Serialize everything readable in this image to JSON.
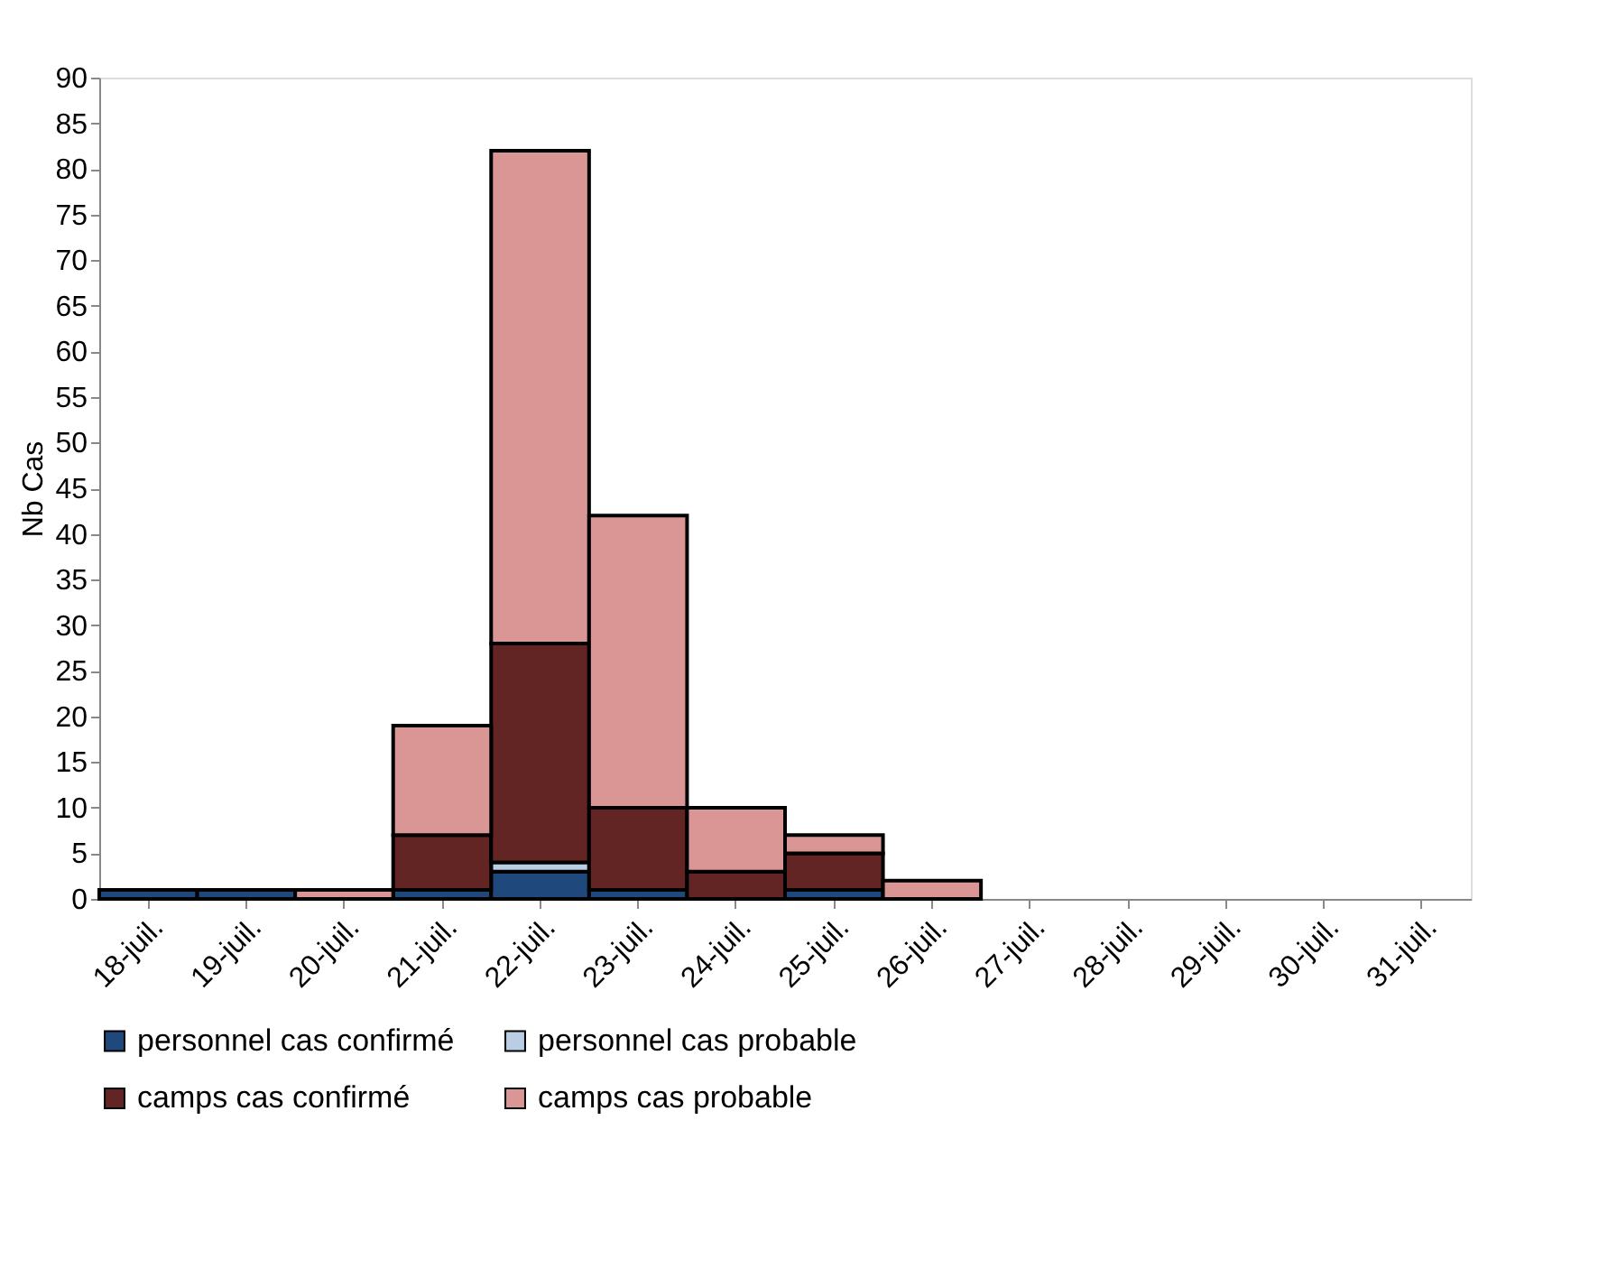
{
  "chart_data": {
    "type": "bar",
    "stacked": true,
    "ylabel": "Nb Cas",
    "categories": [
      "18-juil.",
      "19-juil.",
      "20-juil.",
      "21-juil.",
      "22-juil.",
      "23-juil.",
      "24-juil.",
      "25-juil.",
      "26-juil.",
      "27-juil.",
      "28-juil.",
      "29-juil.",
      "30-juil.",
      "31-juil."
    ],
    "series": [
      {
        "name": "personnel  cas confirmé",
        "color": "#1f497d",
        "values": [
          1,
          1,
          null,
          1,
          3,
          1,
          null,
          1,
          null,
          null,
          null,
          null,
          null,
          null
        ]
      },
      {
        "name": "personnel  cas probable",
        "color": "#b9cde5",
        "values": [
          null,
          null,
          null,
          null,
          1,
          null,
          null,
          null,
          null,
          null,
          null,
          null,
          null,
          null
        ]
      },
      {
        "name": "camps cas confirmé",
        "color": "#632523",
        "values": [
          null,
          null,
          null,
          6,
          24,
          9,
          3,
          4,
          null,
          null,
          null,
          null,
          null,
          null
        ]
      },
      {
        "name": "camps cas probable",
        "color": "#d99694",
        "values": [
          null,
          null,
          1,
          12,
          54,
          32,
          7,
          2,
          2,
          null,
          null,
          null,
          null,
          null
        ]
      }
    ],
    "ylim": [
      0,
      90
    ],
    "yticks": [
      0,
      5,
      10,
      15,
      20,
      25,
      30,
      35,
      40,
      45,
      50,
      55,
      60,
      65,
      70,
      75,
      80,
      85,
      90
    ],
    "grid": false,
    "legend": "bottom"
  }
}
